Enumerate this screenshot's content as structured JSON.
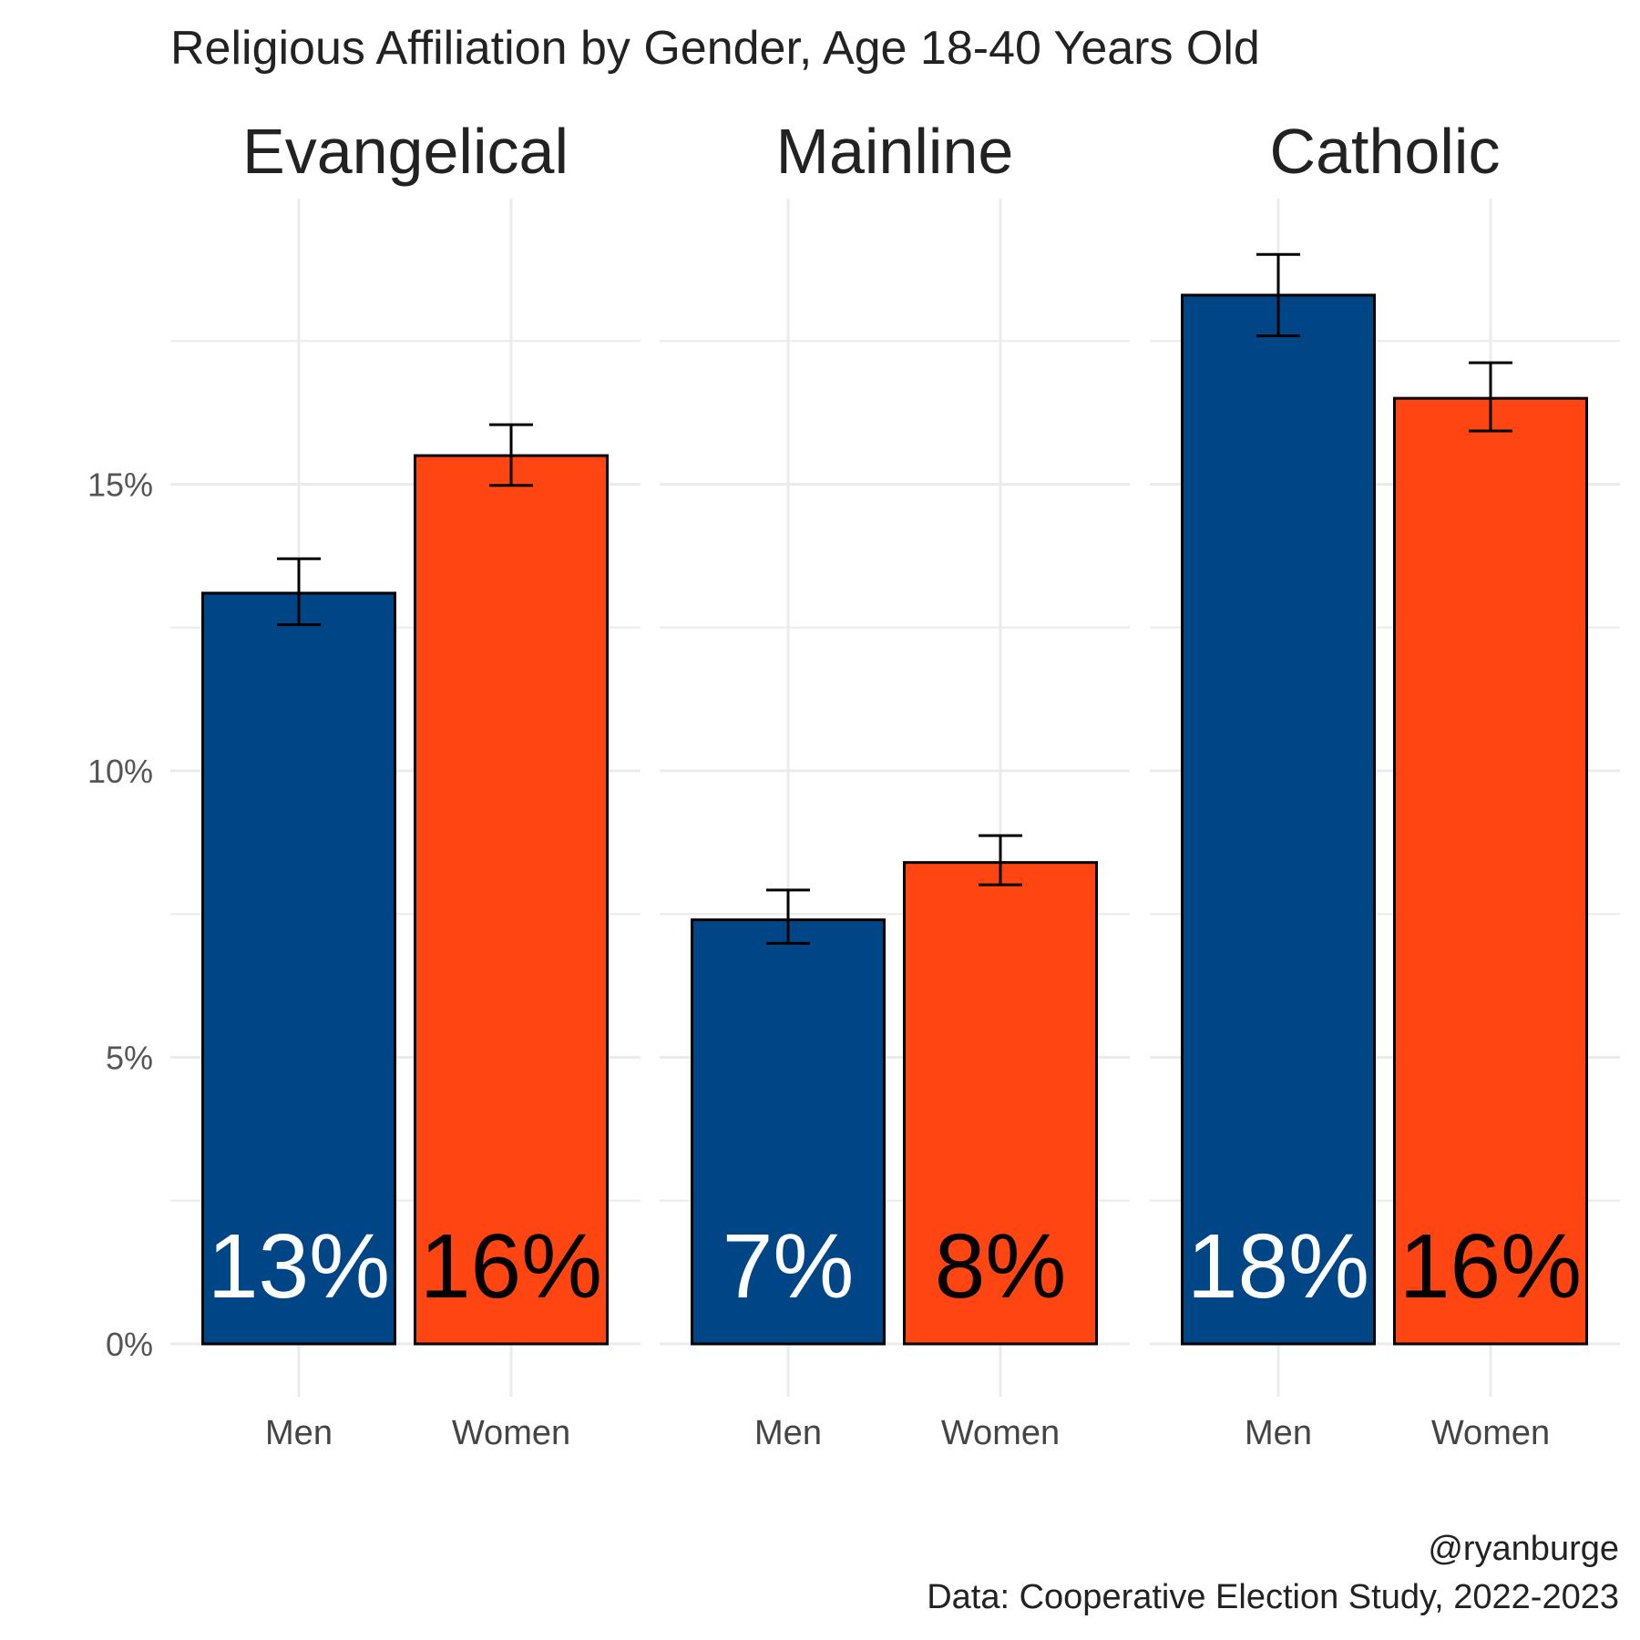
{
  "chart_data": {
    "type": "bar",
    "title": "Religious Affiliation by Gender, Age 18-40 Years Old",
    "facets": [
      "Evangelical",
      "Mainline",
      "Catholic"
    ],
    "categories": [
      "Men",
      "Women"
    ],
    "series": [
      {
        "facet": "Evangelical",
        "values": [
          13.1,
          15.5
        ],
        "error_low": [
          12.55,
          14.98
        ],
        "error_high": [
          13.7,
          16.04
        ],
        "labels": [
          "13%",
          "16%"
        ]
      },
      {
        "facet": "Mainline",
        "values": [
          7.4,
          8.4
        ],
        "error_low": [
          6.99,
          8.01
        ],
        "error_high": [
          7.92,
          8.87
        ],
        "labels": [
          "7%",
          "8%"
        ]
      },
      {
        "facet": "Catholic",
        "values": [
          18.3,
          16.5
        ],
        "error_low": [
          17.59,
          15.93
        ],
        "error_high": [
          19.01,
          17.12
        ],
        "labels": [
          "18%",
          "16%"
        ]
      }
    ],
    "colors": {
      "Men": "#004586",
      "Women": "#ff4511"
    },
    "label_colors": {
      "Men": "#ffffff",
      "Women": "#000000"
    },
    "ylim": [
      0,
      19.5
    ],
    "yticks": [
      0,
      5,
      10,
      15
    ],
    "ytick_labels": [
      "0%",
      "5%",
      "10%",
      "15%"
    ],
    "xlabel": "",
    "ylabel": "",
    "grid": true,
    "legend": "none"
  },
  "caption": {
    "line1": "@ryanburge",
    "line2": "Data: Cooperative Election Study, 2022-2023"
  }
}
